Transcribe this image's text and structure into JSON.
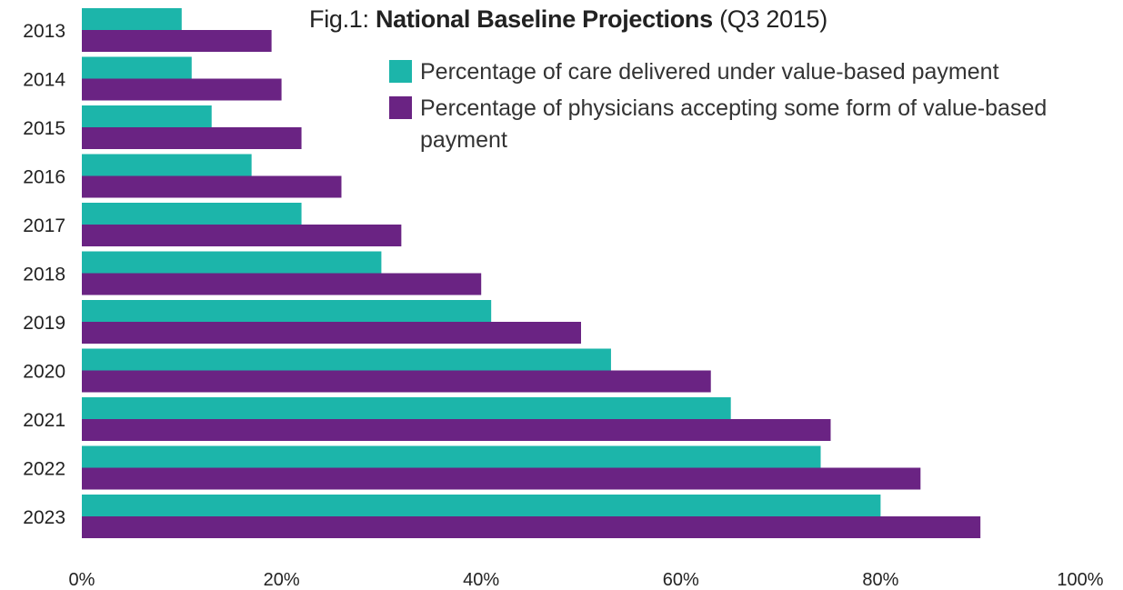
{
  "chart_data": {
    "type": "bar",
    "orientation": "horizontal",
    "title_prefix": "Fig.1:",
    "title_main": "National Baseline Projections",
    "title_suffix": "(Q3 2015)",
    "categories": [
      "2013",
      "2014",
      "2015",
      "2016",
      "2017",
      "2018",
      "2019",
      "2020",
      "2021",
      "2022",
      "2023"
    ],
    "series": [
      {
        "name": "Percentage of care delivered under value-based payment",
        "color": "#1cb5aa",
        "values": [
          10,
          11,
          13,
          17,
          22,
          30,
          41,
          53,
          65,
          74,
          80
        ]
      },
      {
        "name": "Percentage of physicians accepting some form of value-based payment",
        "color": "#6a2383",
        "values": [
          19,
          20,
          22,
          26,
          32,
          40,
          50,
          63,
          75,
          84,
          90
        ]
      }
    ],
    "x_ticks": [
      "0%",
      "20%",
      "40%",
      "60%",
      "80%",
      "100%"
    ],
    "xlim": [
      0,
      100
    ],
    "grid": false,
    "legend_position": "top-right"
  }
}
